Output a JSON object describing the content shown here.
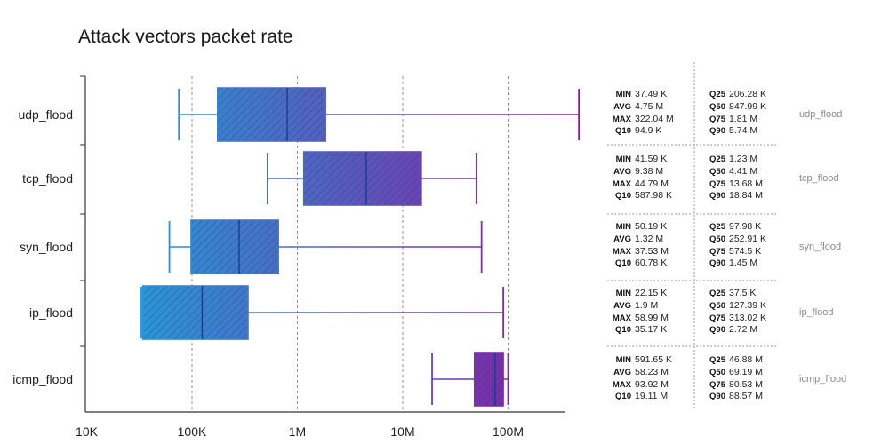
{
  "title": "Attack vectors packet rate",
  "chart_data": {
    "type": "box",
    "title": "Attack vectors packet rate",
    "x_scale": "log",
    "x_ticks": [
      10000,
      100000,
      1000000,
      10000000,
      100000000
    ],
    "x_tick_labels": [
      "10K",
      "100K",
      "1M",
      "10M",
      "100M"
    ],
    "grid": "vertical dotted",
    "colors": {
      "low": "#1ea6dc",
      "high": "#8a1aa0"
    },
    "rows": [
      {
        "name": "udp_flood",
        "whisker_low": 75000,
        "q25": 175000,
        "q50": 800000,
        "q75": 1850000,
        "whisker_high": 470000000,
        "stats": {
          "min": "37.49 K",
          "avg": "4.75 M",
          "max": "322.04 M",
          "q10": "94.9 K",
          "q25": "206.28 K",
          "q50": "847.99 K",
          "q75": "1.81 M",
          "q90": "5.74 M"
        }
      },
      {
        "name": "tcp_flood",
        "whisker_low": 520000,
        "q25": 1150000,
        "q50": 4500000,
        "q75": 15000000,
        "whisker_high": 50000000,
        "stats": {
          "min": "41.59 K",
          "avg": "9.38 M",
          "max": "44.79 M",
          "q10": "587.98 K",
          "q25": "1.23 M",
          "q50": "4.41 M",
          "q75": "13.68 M",
          "q90": "18.84 M"
        }
      },
      {
        "name": "syn_flood",
        "whisker_low": 61000,
        "q25": 98000,
        "q50": 280000,
        "q75": 660000,
        "whisker_high": 56000000,
        "stats": {
          "min": "50.19 K",
          "avg": "1.32 M",
          "max": "37.53 M",
          "q10": "60.78 K",
          "q25": "97.98 K",
          "q50": "252.91 K",
          "q75": "574.5 K",
          "q90": "1.45 M"
        }
      },
      {
        "name": "ip_flood",
        "whisker_low": 33000,
        "q25": 34000,
        "q50": 125000,
        "q75": 340000,
        "whisker_high": 90000000,
        "stats": {
          "min": "22.15 K",
          "avg": "1.9 M",
          "max": "58.99 M",
          "q10": "35.17 K",
          "q25": "37.5 K",
          "q50": "127.39 K",
          "q75": "313.02 K",
          "q90": "2.72 M"
        }
      },
      {
        "name": "icmp_flood",
        "whisker_low": 19000000,
        "q25": 48000000,
        "q50": 75000000,
        "q75": 90000000,
        "whisker_high": 100000000,
        "stats": {
          "min": "591.65 K",
          "avg": "58.23 M",
          "max": "93.92 M",
          "q10": "19.11 M",
          "q25": "46.88 M",
          "q50": "69.19 M",
          "q75": "80.53 M",
          "q90": "88.57 M"
        }
      }
    ]
  }
}
